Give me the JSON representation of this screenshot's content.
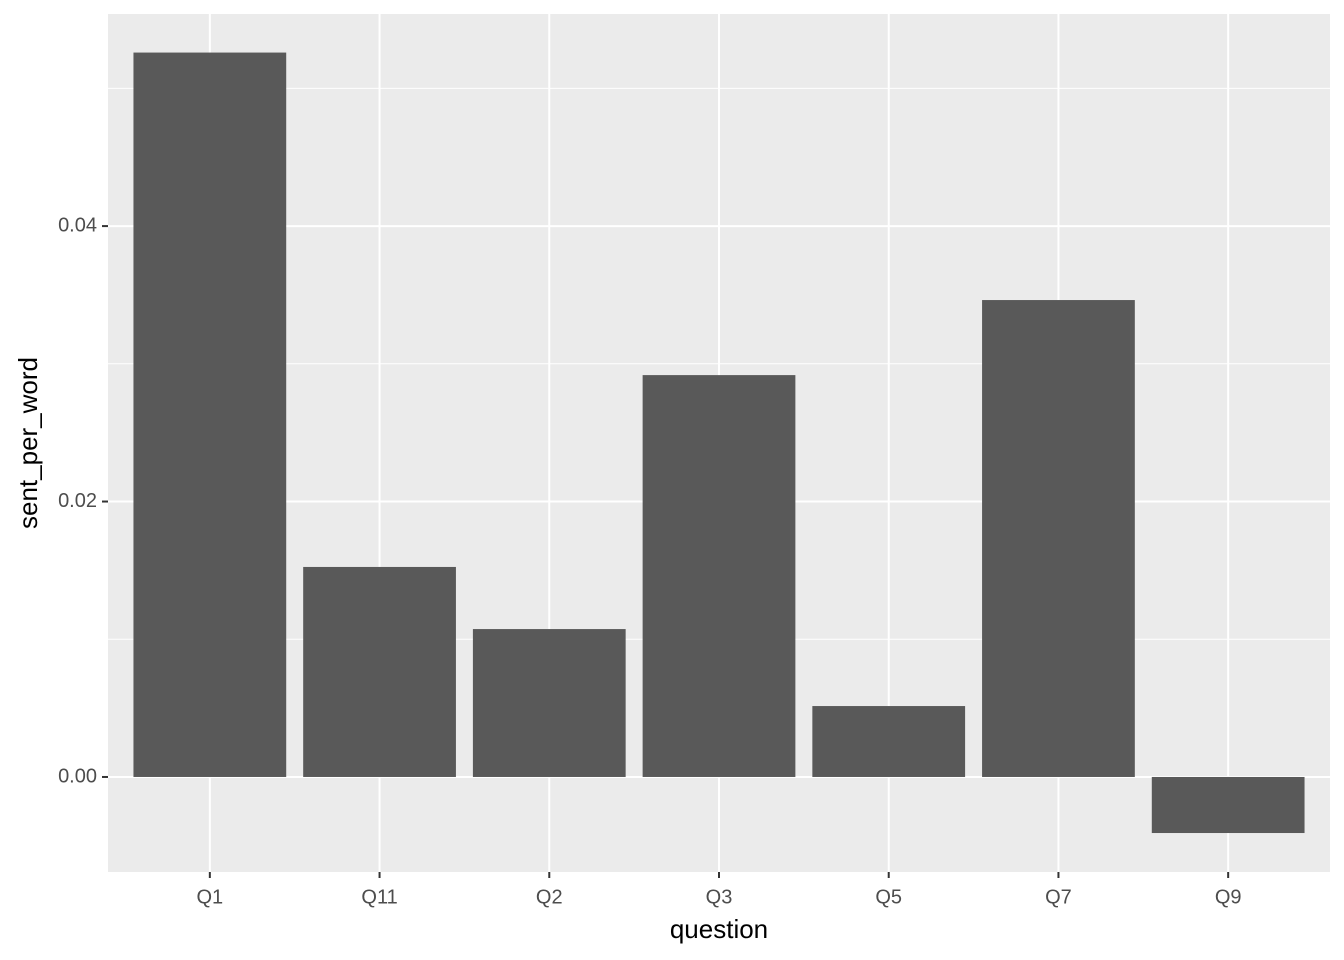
{
  "chart_data": {
    "type": "bar",
    "x_label": "question",
    "y_label": "sent_per_word",
    "categories": [
      "Q1",
      "Q11",
      "Q2",
      "Q3",
      "Q5",
      "Q7",
      "Q9"
    ],
    "values": [
      0.0526,
      0.01525,
      0.01074,
      0.02918,
      0.00515,
      0.03463,
      -0.00407
    ],
    "color": "#595959",
    "ylim": [
      -0.0069,
      0.0554
    ],
    "yticks": [
      {
        "value": 0,
        "label": "0.00"
      },
      {
        "value": 0.02,
        "label": "0.02"
      },
      {
        "value": 0.04,
        "label": "0.04"
      }
    ],
    "minor_yticks": [
      0.01,
      0.03,
      0.05
    ],
    "grid": true
  }
}
